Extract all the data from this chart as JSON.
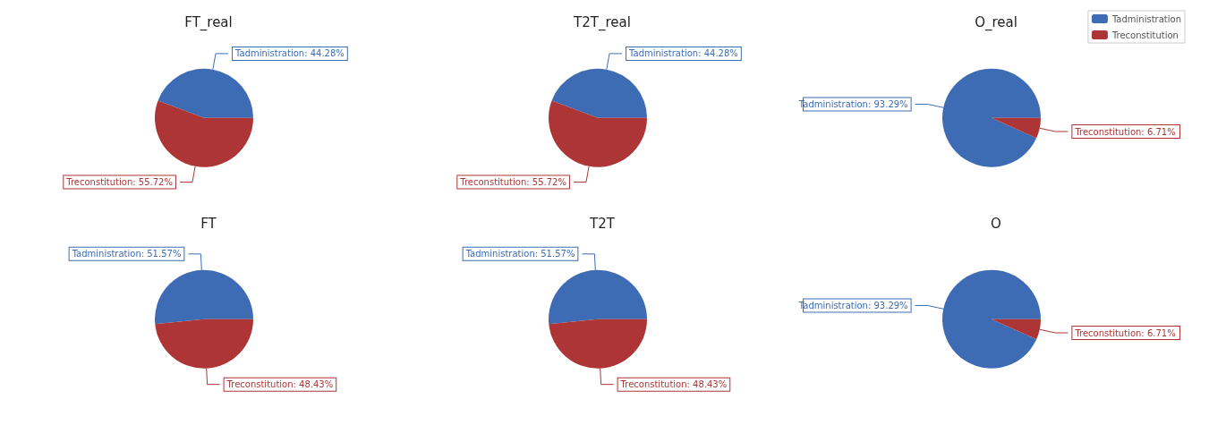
{
  "chart_data": [
    {
      "type": "pie",
      "title": "FT_real",
      "categories": [
        "Tadministration",
        "Treconstitution"
      ],
      "values": [
        44.28,
        55.72
      ],
      "colors": [
        "#3d6cb4",
        "#ad3535"
      ],
      "value_labels": [
        ": 44.28%",
        ": 55.72%"
      ]
    },
    {
      "type": "pie",
      "title": "T2T_real",
      "categories": [
        "Tadministration",
        "Treconstitution"
      ],
      "values": [
        44.28,
        55.72
      ],
      "colors": [
        "#3d6cb4",
        "#ad3535"
      ],
      "value_labels": [
        ": 44.28%",
        ": 55.72%"
      ]
    },
    {
      "type": "pie",
      "title": "O_real",
      "categories": [
        "Tadministration",
        "Treconstitution"
      ],
      "values": [
        93.29,
        6.71
      ],
      "colors": [
        "#3d6cb4",
        "#ad3535"
      ],
      "value_labels": [
        ": 93.29%",
        ": 6.71%"
      ],
      "legend": "top right"
    },
    {
      "type": "pie",
      "title": "FT",
      "categories": [
        "Tadministration",
        "Treconstitution"
      ],
      "values": [
        51.57,
        48.43
      ],
      "colors": [
        "#3d6cb4",
        "#ad3535"
      ],
      "value_labels": [
        ": 51.57%",
        ": 48.43%"
      ]
    },
    {
      "type": "pie",
      "title": "T2T",
      "categories": [
        "Tadministration",
        "Treconstitution"
      ],
      "values": [
        51.57,
        48.43
      ],
      "colors": [
        "#3d6cb4",
        "#ad3535"
      ],
      "value_labels": [
        ": 51.57%",
        ": 48.43%"
      ]
    },
    {
      "type": "pie",
      "title": "O",
      "categories": [
        "Tadministration",
        "Treconstitution"
      ],
      "values": [
        93.29,
        6.71
      ],
      "colors": [
        "#3d6cb4",
        "#ad3535"
      ],
      "value_labels": [
        ": 93.29%",
        ": 6.71%"
      ]
    }
  ]
}
